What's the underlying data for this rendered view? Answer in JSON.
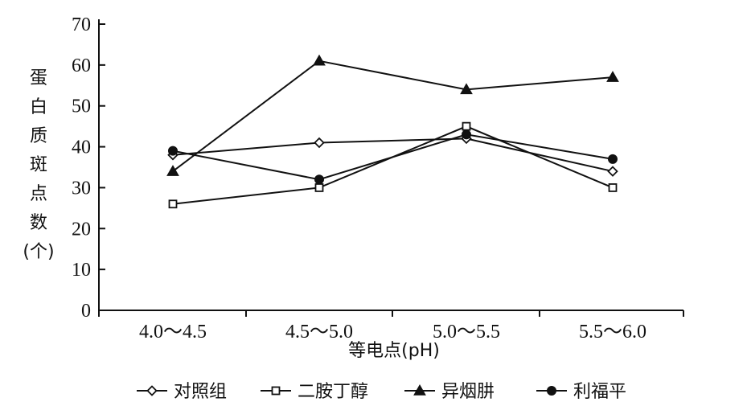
{
  "chart_data": {
    "type": "line",
    "categories": [
      "4.0～4.5",
      "4.5～5.0",
      "5.0～5.5",
      "5.5～6.0"
    ],
    "xlabel": "等电点(pH)",
    "ylabel_chars": [
      "蛋",
      "白",
      "质",
      "斑",
      "点",
      "数",
      "(个)"
    ],
    "ylim": [
      0,
      70
    ],
    "yticks": [
      0,
      10,
      20,
      30,
      40,
      50,
      60,
      70
    ],
    "grid": false,
    "legend_position": "bottom",
    "series": [
      {
        "name": "对照组",
        "marker": "diamond-open",
        "values": [
          38,
          41,
          42,
          34
        ]
      },
      {
        "name": "二胺丁醇",
        "marker": "square-open",
        "values": [
          26,
          30,
          45,
          30
        ]
      },
      {
        "name": "异烟肼",
        "marker": "triangle-filled",
        "values": [
          34,
          61,
          54,
          57
        ]
      },
      {
        "name": "利福平",
        "marker": "circle-filled",
        "values": [
          39,
          32,
          43,
          37
        ]
      }
    ],
    "colors": {
      "line": "#111111",
      "background": "#ffffff"
    }
  }
}
